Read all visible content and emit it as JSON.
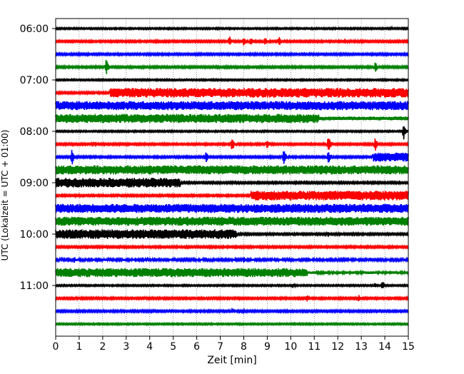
{
  "chart_data": {
    "type": "line",
    "title": "",
    "xlabel": "Zeit  [min]",
    "ylabel": "UTC (Lokalzeit = UTC + 01:00)",
    "xlim": [
      0,
      15
    ],
    "x_ticks": [
      0,
      1,
      2,
      3,
      4,
      5,
      6,
      7,
      8,
      9,
      10,
      11,
      12,
      13,
      14,
      15
    ],
    "y_ticks": [
      "06:00",
      "07:00",
      "08:00",
      "09:00",
      "10:00",
      "11:00"
    ],
    "grid": "vertical dotted",
    "trace_colors": [
      "#000000",
      "#ff0000",
      "#0000ff",
      "#008000"
    ],
    "series": [
      {
        "start": "06:00",
        "color": "#000000",
        "level": 0.12,
        "events": [
          [
            14.3,
            0.25
          ]
        ]
      },
      {
        "start": "06:15",
        "color": "#ff0000",
        "level": 0.15,
        "events": [
          [
            7.4,
            0.9
          ],
          [
            8.0,
            0.7
          ],
          [
            8.3,
            0.8
          ],
          [
            8.9,
            0.8
          ],
          [
            9.5,
            0.8
          ],
          [
            12.3,
            0.6
          ]
        ]
      },
      {
        "start": "06:30",
        "color": "#0000ff",
        "level": 0.15,
        "events": [
          [
            10.3,
            0.3
          ],
          [
            11.3,
            0.3
          ]
        ]
      },
      {
        "start": "06:45",
        "color": "#008000",
        "level": 0.15,
        "events": [
          [
            2.15,
            1.4
          ],
          [
            13.6,
            0.9
          ]
        ]
      },
      {
        "start": "07:00",
        "color": "#000000",
        "level": 0.12,
        "events": []
      },
      {
        "start": "07:15",
        "color": "#ff0000",
        "level": 0.15,
        "events": [
          [
            1.7,
            0.3
          ]
        ],
        "busy": [
          [
            2.3,
            15,
            0.75
          ]
        ]
      },
      {
        "start": "07:30",
        "color": "#0000ff",
        "level": 0.7,
        "events": []
      },
      {
        "start": "07:45",
        "color": "#008000",
        "level": 0.7,
        "events": [],
        "busy": [
          [
            0,
            11.2,
            0.7
          ]
        ],
        "after": 0.3
      },
      {
        "start": "08:00",
        "color": "#000000",
        "level": 0.12,
        "events": [
          [
            14.8,
            1.4
          ]
        ]
      },
      {
        "start": "08:15",
        "color": "#ff0000",
        "level": 0.15,
        "events": [
          [
            1.7,
            0.5
          ],
          [
            7.5,
            1.3
          ],
          [
            9.0,
            0.8
          ],
          [
            11.6,
            1.5
          ],
          [
            13.6,
            1.1
          ]
        ]
      },
      {
        "start": "08:30",
        "color": "#0000ff",
        "level": 0.15,
        "events": [
          [
            0.7,
            1.4
          ],
          [
            6.4,
            1.0
          ],
          [
            9.7,
            1.3
          ],
          [
            11.6,
            1.1
          ]
        ],
        "busy": [
          [
            13.5,
            15,
            0.7
          ]
        ]
      },
      {
        "start": "08:45",
        "color": "#008000",
        "level": 0.7,
        "events": []
      },
      {
        "start": "09:00",
        "color": "#000000",
        "level": 0.15,
        "events": [],
        "busy": [
          [
            0,
            5.3,
            0.75
          ]
        ]
      },
      {
        "start": "09:15",
        "color": "#ff0000",
        "level": 0.15,
        "events": [
          [
            2.7,
            0.3
          ],
          [
            14.2,
            0.4
          ]
        ],
        "busy": [
          [
            8.3,
            15,
            0.75
          ]
        ]
      },
      {
        "start": "09:30",
        "color": "#0000ff",
        "level": 0.7,
        "events": []
      },
      {
        "start": "09:45",
        "color": "#008000",
        "level": 0.7,
        "events": []
      },
      {
        "start": "10:00",
        "color": "#000000",
        "level": 0.15,
        "events": [
          [
            9.6,
            0.4
          ],
          [
            11.6,
            0.5
          ]
        ],
        "busy": [
          [
            0,
            7.7,
            0.75
          ]
        ]
      },
      {
        "start": "10:15",
        "color": "#ff0000",
        "level": 0.15,
        "events": [
          [
            2.1,
            0.3
          ],
          [
            8.0,
            0.3
          ],
          [
            10.1,
            0.3
          ]
        ]
      },
      {
        "start": "10:30",
        "color": "#0000ff",
        "level": 0.18,
        "events": [
          [
            0.8,
            0.5
          ],
          [
            3.4,
            0.5
          ],
          [
            8.0,
            0.5
          ],
          [
            13.4,
            0.5
          ]
        ]
      },
      {
        "start": "10:45",
        "color": "#008000",
        "level": 0.7,
        "events": [],
        "busy": [
          [
            0,
            10.7,
            0.7
          ]
        ],
        "after": 0.2
      },
      {
        "start": "11:00",
        "color": "#000000",
        "level": 0.12,
        "events": [
          [
            10.1,
            0.4
          ],
          [
            13.6,
            0.5
          ],
          [
            13.9,
            0.8
          ]
        ]
      },
      {
        "start": "11:15",
        "color": "#ff0000",
        "level": 0.15,
        "events": [
          [
            0.8,
            0.4
          ],
          [
            3.8,
            0.3
          ],
          [
            10.7,
            0.6
          ],
          [
            12.9,
            0.6
          ]
        ]
      },
      {
        "start": "11:30",
        "color": "#0000ff",
        "level": 0.15,
        "events": [
          [
            4.2,
            0.3
          ],
          [
            4.9,
            0.4
          ],
          [
            7.5,
            0.5
          ],
          [
            8.0,
            0.5
          ],
          [
            13.8,
            0.4
          ]
        ]
      },
      {
        "start": "11:45",
        "color": "#008000",
        "level": 0.12,
        "events": []
      }
    ]
  }
}
